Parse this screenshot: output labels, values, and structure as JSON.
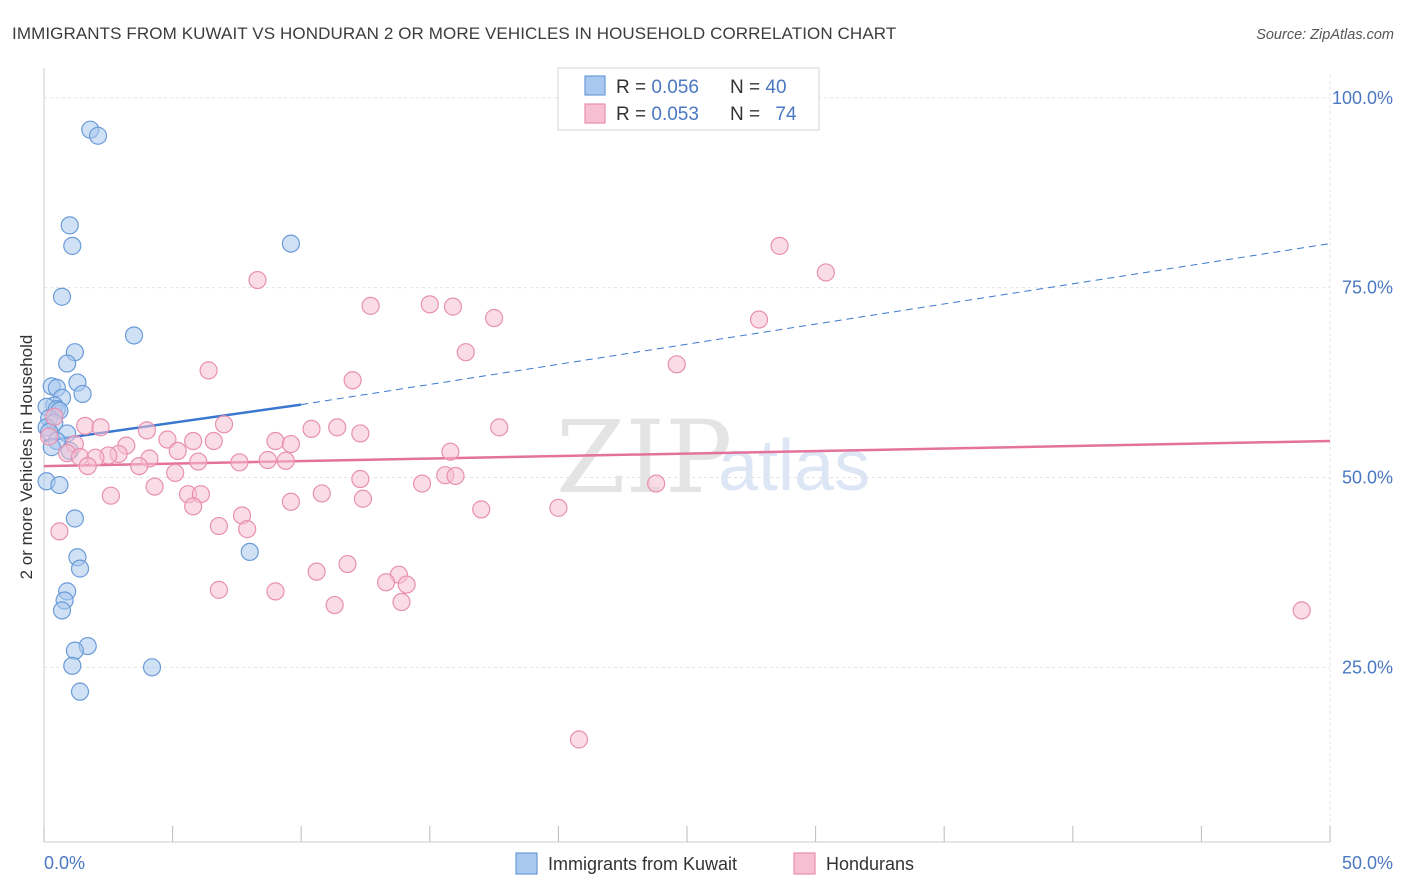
{
  "title": "IMMIGRANTS FROM KUWAIT VS HONDURAN 2 OR MORE VEHICLES IN HOUSEHOLD CORRELATION CHART",
  "source": "Source: ZipAtlas.com",
  "watermark": {
    "zip": "ZIP",
    "atlas": "atlas"
  },
  "colors": {
    "kuwait_fill": "#a9c8ef",
    "kuwait_stroke": "#6a9bd8",
    "kuwait_line": "#3a78d0",
    "honduran_fill": "#f6bfd2",
    "honduran_stroke": "#e890b0",
    "honduran_line": "#e4729a",
    "tick_text": "#4a78c2",
    "grid": "#e3e3e3"
  },
  "legend": {
    "rows": [
      {
        "r_label": "R = ",
        "r_value": "0.056",
        "n_label": "N = ",
        "n_value": "40"
      },
      {
        "r_label": "R = ",
        "r_value": "0.053",
        "n_label": "N = ",
        "n_value": "74"
      }
    ]
  },
  "chart_data": {
    "type": "scatter",
    "title": "IMMIGRANTS FROM KUWAIT VS HONDURAN 2 OR MORE VEHICLES IN HOUSEHOLD CORRELATION CHART",
    "xlabel": "",
    "ylabel": "2 or more Vehicles in Household",
    "xlim": [
      0,
      50
    ],
    "ylim": [
      2,
      103
    ],
    "x_ticks_labels": [
      "0.0%",
      "50.0%"
    ],
    "y_ticks": [
      25,
      50,
      75,
      100
    ],
    "y_ticks_labels": [
      "25.0%",
      "50.0%",
      "75.0%",
      "100.0%"
    ],
    "grid": true,
    "legend_position": "top-center",
    "series": [
      {
        "name": "Immigrants from Kuwait",
        "r": 0.056,
        "n": 40,
        "trend": {
          "x0": 0,
          "y0": 54.8,
          "x1": 10,
          "y1": 59.6,
          "x_dashed_end": 50,
          "y_dashed_end": 80.8
        },
        "points": [
          [
            1.8,
            95.8
          ],
          [
            2.1,
            95.0
          ],
          [
            1.0,
            83.2
          ],
          [
            1.1,
            80.5
          ],
          [
            9.6,
            80.8
          ],
          [
            0.7,
            73.8
          ],
          [
            3.5,
            68.7
          ],
          [
            1.2,
            66.5
          ],
          [
            0.9,
            65.0
          ],
          [
            1.3,
            62.5
          ],
          [
            0.3,
            62.0
          ],
          [
            0.5,
            61.8
          ],
          [
            1.5,
            61.0
          ],
          [
            0.7,
            60.5
          ],
          [
            0.4,
            59.5
          ],
          [
            0.1,
            59.3
          ],
          [
            0.5,
            59.0
          ],
          [
            0.6,
            58.8
          ],
          [
            0.2,
            57.8
          ],
          [
            0.4,
            57.2
          ],
          [
            0.1,
            56.6
          ],
          [
            0.2,
            56.0
          ],
          [
            0.9,
            55.8
          ],
          [
            0.5,
            54.8
          ],
          [
            0.3,
            54.0
          ],
          [
            1.0,
            53.5
          ],
          [
            0.1,
            49.5
          ],
          [
            0.6,
            49.0
          ],
          [
            1.2,
            44.6
          ],
          [
            8.0,
            40.2
          ],
          [
            1.3,
            39.5
          ],
          [
            1.4,
            38.0
          ],
          [
            0.9,
            35.0
          ],
          [
            0.8,
            33.8
          ],
          [
            0.7,
            32.5
          ],
          [
            1.7,
            27.8
          ],
          [
            1.2,
            27.2
          ],
          [
            1.1,
            25.2
          ],
          [
            4.2,
            25.0
          ],
          [
            1.4,
            21.8
          ]
        ]
      },
      {
        "name": "Hondurans",
        "r": 0.053,
        "n": 74,
        "trend": {
          "x0": 0,
          "y0": 51.5,
          "x1": 50,
          "y1": 54.8
        },
        "points": [
          [
            28.6,
            80.5
          ],
          [
            30.4,
            77.0
          ],
          [
            8.3,
            76.0
          ],
          [
            12.7,
            72.6
          ],
          [
            15.0,
            72.8
          ],
          [
            15.9,
            72.5
          ],
          [
            17.5,
            71.0
          ],
          [
            27.8,
            70.8
          ],
          [
            16.4,
            66.5
          ],
          [
            24.6,
            64.9
          ],
          [
            6.4,
            64.1
          ],
          [
            12.0,
            62.8
          ],
          [
            0.4,
            58.0
          ],
          [
            7.0,
            57.0
          ],
          [
            1.6,
            56.8
          ],
          [
            2.2,
            56.6
          ],
          [
            17.7,
            56.6
          ],
          [
            10.4,
            56.4
          ],
          [
            11.4,
            56.6
          ],
          [
            4.0,
            56.2
          ],
          [
            12.3,
            55.8
          ],
          [
            0.2,
            55.4
          ],
          [
            4.8,
            55.0
          ],
          [
            5.8,
            54.8
          ],
          [
            9.0,
            54.8
          ],
          [
            6.6,
            54.8
          ],
          [
            9.6,
            54.4
          ],
          [
            1.2,
            54.4
          ],
          [
            3.2,
            54.2
          ],
          [
            5.2,
            53.5
          ],
          [
            15.8,
            53.4
          ],
          [
            0.9,
            53.2
          ],
          [
            2.9,
            53.1
          ],
          [
            2.5,
            52.9
          ],
          [
            1.4,
            52.7
          ],
          [
            2.0,
            52.6
          ],
          [
            4.1,
            52.5
          ],
          [
            8.7,
            52.3
          ],
          [
            9.4,
            52.2
          ],
          [
            6.0,
            52.1
          ],
          [
            7.6,
            52.0
          ],
          [
            1.7,
            51.5
          ],
          [
            3.7,
            51.5
          ],
          [
            5.1,
            50.6
          ],
          [
            12.3,
            49.8
          ],
          [
            14.7,
            49.2
          ],
          [
            15.6,
            50.3
          ],
          [
            16.0,
            50.2
          ],
          [
            23.8,
            49.2
          ],
          [
            4.3,
            48.8
          ],
          [
            2.6,
            47.6
          ],
          [
            5.6,
            47.8
          ],
          [
            6.1,
            47.8
          ],
          [
            10.8,
            47.9
          ],
          [
            12.4,
            47.2
          ],
          [
            9.6,
            46.8
          ],
          [
            5.8,
            46.2
          ],
          [
            17.0,
            45.8
          ],
          [
            20.0,
            46.0
          ],
          [
            7.7,
            45.0
          ],
          [
            6.8,
            43.6
          ],
          [
            7.9,
            43.2
          ],
          [
            0.6,
            42.9
          ],
          [
            11.8,
            38.6
          ],
          [
            10.6,
            37.6
          ],
          [
            13.8,
            37.2
          ],
          [
            13.3,
            36.2
          ],
          [
            14.1,
            35.9
          ],
          [
            6.8,
            35.2
          ],
          [
            9.0,
            35.0
          ],
          [
            11.3,
            33.2
          ],
          [
            13.9,
            33.6
          ],
          [
            48.9,
            32.5
          ],
          [
            20.8,
            15.5
          ]
        ]
      }
    ]
  },
  "bottom_legend": {
    "kuwait_label": "Immigrants from Kuwait",
    "honduran_label": "Hondurans"
  }
}
